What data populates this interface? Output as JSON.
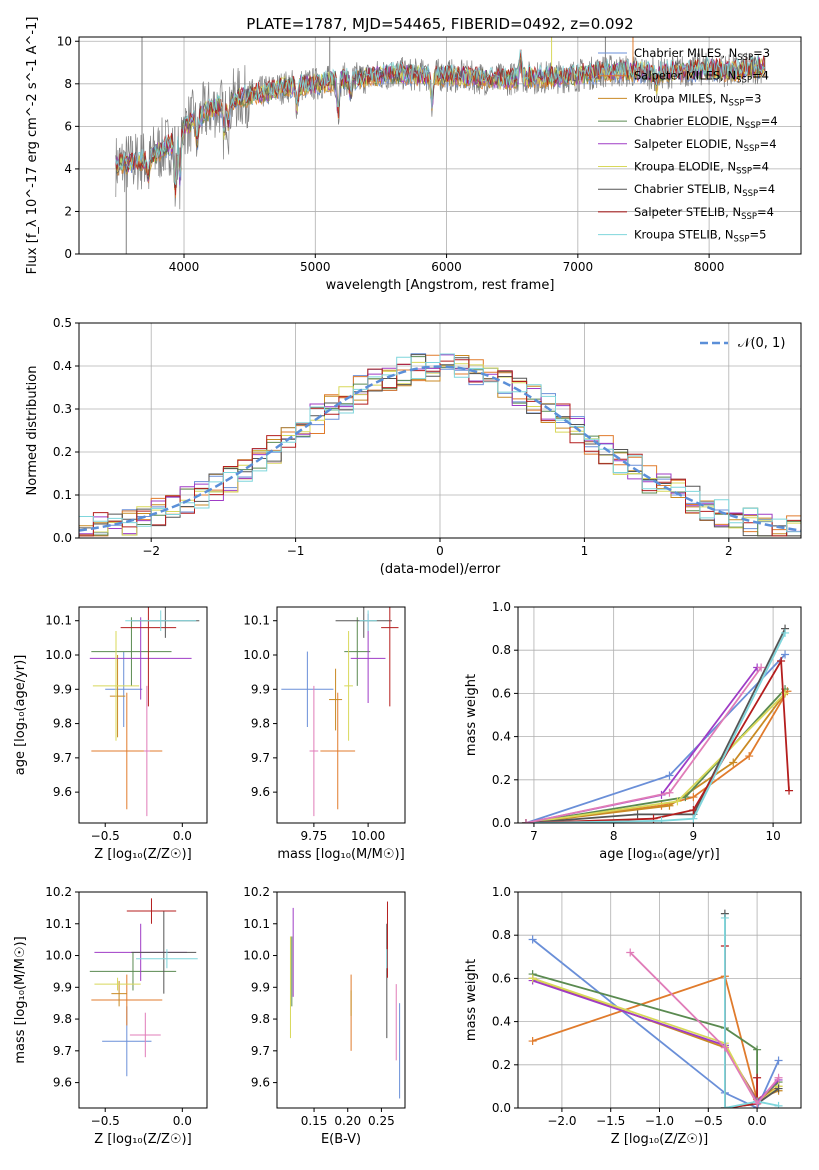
{
  "figure": {
    "title": "PLATE=1787, MJD=54465, FIBERID=0492, z=0.092"
  },
  "colors": {
    "Chabrier MILES": "#6a8fd8",
    "Salpeter MILES": "#e07b2c",
    "Kroupa MILES": "#c98a24",
    "Chabrier ELODIE": "#5a8a50",
    "Salpeter ELODIE": "#9f3cc6",
    "Kroupa ELODIE": "#d8d85a",
    "Chabrier STELIB": "#555555",
    "Salpeter STELIB": "#b41e1e",
    "Kroupa STELIB": "#7fd6dc",
    "extra_pink": "#e07cb8",
    "normal_curve": "#5b8fd8"
  },
  "chart_data": [
    {
      "id": "spectrum",
      "type": "line",
      "title": "PLATE=1787, MJD=54465, FIBERID=0492, z=0.092",
      "xlabel": "wavelength [Angstrom, rest frame]",
      "ylabel": "Flux [f_λ 10^-17 erg cm^-2 s^-1 A^-1]",
      "xlim": [
        3200,
        8700
      ],
      "ylim": [
        0,
        10.2
      ],
      "xticks": [
        "4000",
        "5000",
        "6000",
        "7000",
        "8000"
      ],
      "yticks": [
        "0",
        "2",
        "4",
        "6",
        "8",
        "10"
      ],
      "grid": true,
      "legend_position": "right",
      "legend": [
        {
          "label": "Chabrier MILES, N",
          "sub": "SSP",
          "tail": "=3",
          "key": "Chabrier MILES"
        },
        {
          "label": "Salpeter MILES, N",
          "sub": "SSP",
          "tail": "=4",
          "key": "Salpeter MILES"
        },
        {
          "label": "Kroupa MILES, N",
          "sub": "SSP",
          "tail": "=3",
          "key": "Kroupa MILES"
        },
        {
          "label": "Chabrier ELODIE, N",
          "sub": "SSP",
          "tail": "=4",
          "key": "Chabrier ELODIE"
        },
        {
          "label": "Salpeter ELODIE, N",
          "sub": "SSP",
          "tail": "=4",
          "key": "Salpeter ELODIE"
        },
        {
          "label": "Kroupa ELODIE, N",
          "sub": "SSP",
          "tail": "=4",
          "key": "Kroupa ELODIE"
        },
        {
          "label": "Chabrier STELIB, N",
          "sub": "SSP",
          "tail": "=4",
          "key": "Chabrier STELIB"
        },
        {
          "label": "Salpeter STELIB, N",
          "sub": "SSP",
          "tail": "=4",
          "key": "Salpeter STELIB"
        },
        {
          "label": "Kroupa STELIB, N",
          "sub": "SSP",
          "tail": "=5",
          "key": "Kroupa STELIB"
        }
      ],
      "continuum": {
        "x": [
          3500,
          3700,
          3900,
          4000,
          4200,
          4400,
          4600,
          4800,
          5000,
          5200,
          5400,
          5600,
          5800,
          6000,
          6200,
          6400,
          6600,
          6800,
          7000,
          7200,
          7400,
          7600,
          7800,
          8000,
          8200,
          8400
        ],
        "y": [
          4.2,
          4.4,
          5.2,
          6.0,
          6.8,
          7.3,
          7.6,
          7.9,
          8.0,
          8.2,
          8.3,
          8.5,
          8.4,
          8.4,
          8.3,
          8.2,
          8.3,
          8.3,
          8.4,
          8.6,
          8.6,
          8.5,
          8.6,
          8.7,
          8.6,
          8.8
        ]
      }
    },
    {
      "id": "residuals",
      "type": "histogram",
      "xlabel": "(data-model)/error",
      "ylabel": "Normed distribution",
      "xlim": [
        -2.5,
        2.5
      ],
      "ylim": [
        0,
        0.5
      ],
      "xticks": [
        "−2",
        "−1",
        "0",
        "1",
        "2"
      ],
      "yticks": [
        "0.0",
        "0.1",
        "0.2",
        "0.3",
        "0.4",
        "0.5"
      ],
      "grid": true,
      "legend": [
        {
          "label": "𝒩(0, 1)",
          "style": "dashed"
        }
      ],
      "curve": {
        "mean": 0,
        "sigma": 1
      }
    },
    {
      "id": "age_vs_Z",
      "type": "errorbar",
      "xlabel": "Z [log₁₀(Z/Z☉)]",
      "ylabel": "age  [log₁₀(age/yr)]",
      "xlim": [
        -0.67,
        0.16
      ],
      "ylim": [
        9.51,
        10.14
      ],
      "xticks": [
        "−0.5",
        "0.0"
      ],
      "yticks": [
        "9.6",
        "9.7",
        "9.8",
        "9.9",
        "10.0",
        "10.1"
      ],
      "points": [
        {
          "model": "Chabrier MILES",
          "x": -0.38,
          "xerr": 0.12,
          "y": 9.9,
          "yerr": 0.11
        },
        {
          "model": "Salpeter MILES",
          "x": -0.36,
          "xerr": 0.23,
          "y": 9.72,
          "yerr": 0.17
        },
        {
          "model": "Kroupa MILES",
          "x": -0.42,
          "xerr": 0.05,
          "y": 9.88,
          "yerr": 0.12
        },
        {
          "model": "Chabrier ELODIE",
          "x": -0.33,
          "xerr": 0.26,
          "y": 10.01,
          "yerr": 0.1
        },
        {
          "model": "Salpeter ELODIE",
          "x": -0.27,
          "xerr": 0.33,
          "y": 9.99,
          "yerr": 0.12
        },
        {
          "model": "Kroupa ELODIE",
          "x": -0.43,
          "xerr": 0.15,
          "y": 9.91,
          "yerr": 0.16
        },
        {
          "model": "Chabrier STELIB",
          "x": -0.11,
          "xerr": 0.22,
          "y": 10.1,
          "yerr": 0.05
        },
        {
          "model": "Salpeter STELIB",
          "x": -0.22,
          "xerr": 0.18,
          "y": 10.08,
          "yerr": 0.23
        },
        {
          "model": "Kroupa STELIB",
          "x": -0.14,
          "xerr": 0.23,
          "y": 10.1,
          "yerr": 0.03
        },
        {
          "model": "extra_pink",
          "x": -0.23,
          "xerr": 0.02,
          "y": 9.72,
          "yerr": 0.19
        }
      ]
    },
    {
      "id": "mass_vs_age",
      "type": "errorbar",
      "xlabel": "mass [log₁₀(M/M☉)]",
      "xlim": [
        9.58,
        10.17
      ],
      "ylim": [
        9.51,
        10.14
      ],
      "xticks": [
        "9.75",
        "10.00"
      ],
      "yticks": [
        "9.6",
        "9.7",
        "9.8",
        "9.9",
        "10.0",
        "10.1"
      ],
      "points": [
        {
          "model": "Chabrier MILES",
          "x": 9.72,
          "xerr": 0.12,
          "y": 9.9,
          "yerr": 0.11
        },
        {
          "model": "Salpeter MILES",
          "x": 9.86,
          "xerr": 0.08,
          "y": 9.72,
          "yerr": 0.17
        },
        {
          "model": "Kroupa MILES",
          "x": 9.85,
          "xerr": 0.03,
          "y": 9.87,
          "yerr": 0.09
        },
        {
          "model": "Chabrier ELODIE",
          "x": 9.95,
          "xerr": 0.06,
          "y": 10.01,
          "yerr": 0.1
        },
        {
          "model": "Salpeter ELODIE",
          "x": 10.0,
          "xerr": 0.08,
          "y": 9.99,
          "yerr": 0.13
        },
        {
          "model": "Kroupa ELODIE",
          "x": 9.91,
          "xerr": 0.02,
          "y": 9.91,
          "yerr": 0.16
        },
        {
          "model": "Chabrier STELIB",
          "x": 9.98,
          "xerr": 0.13,
          "y": 10.1,
          "yerr": 0.05
        },
        {
          "model": "Salpeter STELIB",
          "x": 10.1,
          "xerr": 0.04,
          "y": 10.08,
          "yerr": 0.23
        },
        {
          "model": "Kroupa STELIB",
          "x": 10.0,
          "xerr": 0.04,
          "y": 10.1,
          "yerr": 0.03
        },
        {
          "model": "extra_pink",
          "x": 9.75,
          "xerr": 0.02,
          "y": 9.72,
          "yerr": 0.19
        }
      ]
    },
    {
      "id": "weight_vs_age",
      "type": "line",
      "xlabel": "age  [log₁₀(age/yr)]",
      "ylabel": "mass weight",
      "xlim": [
        6.8,
        10.35
      ],
      "ylim": [
        0,
        1.0
      ],
      "xticks": [
        "7",
        "8",
        "9",
        "10"
      ],
      "yticks": [
        "0.0",
        "0.2",
        "0.4",
        "0.6",
        "0.8",
        "1.0"
      ],
      "grid": true,
      "series": [
        {
          "model": "Chabrier MILES",
          "x": [
            6.9,
            8.7,
            10.15
          ],
          "y": [
            0.0,
            0.22,
            0.78
          ]
        },
        {
          "model": "Salpeter MILES",
          "x": [
            6.9,
            8.6,
            9.0,
            9.7,
            10.18
          ],
          "y": [
            0.0,
            0.08,
            0.12,
            0.31,
            0.61
          ]
        },
        {
          "model": "Kroupa MILES",
          "x": [
            6.9,
            8.7,
            9.5,
            10.15
          ],
          "y": [
            0.0,
            0.08,
            0.28,
            0.6
          ]
        },
        {
          "model": "Chabrier ELODIE",
          "x": [
            6.9,
            8.9,
            10.15
          ],
          "y": [
            0.0,
            0.12,
            0.62
          ]
        },
        {
          "model": "Salpeter ELODIE",
          "x": [
            6.9,
            8.6,
            9.8
          ],
          "y": [
            0.0,
            0.13,
            0.72
          ]
        },
        {
          "model": "Kroupa ELODIE",
          "x": [
            6.9,
            8.8,
            10.15
          ],
          "y": [
            0.0,
            0.1,
            0.6
          ]
        },
        {
          "model": "Chabrier STELIB",
          "x": [
            6.9,
            8.3,
            9.0,
            10.15
          ],
          "y": [
            0.0,
            0.04,
            0.04,
            0.9
          ]
        },
        {
          "model": "Salpeter STELIB",
          "x": [
            6.9,
            8.5,
            9.0,
            10.1,
            10.2
          ],
          "y": [
            0.0,
            0.02,
            0.06,
            0.75,
            0.15
          ]
        },
        {
          "model": "Kroupa STELIB",
          "x": [
            6.9,
            8.6,
            9.0,
            10.15
          ],
          "y": [
            0.0,
            0.01,
            0.02,
            0.88
          ]
        },
        {
          "model": "extra_pink",
          "x": [
            6.9,
            8.7,
            9.85
          ],
          "y": [
            0.0,
            0.14,
            0.72
          ]
        }
      ]
    },
    {
      "id": "mass_vs_Z",
      "type": "errorbar",
      "xlabel": "Z [log₁₀(Z/Z☉)]",
      "ylabel": "mass [log₁₀(M/M☉)]",
      "xlim": [
        -0.67,
        0.16
      ],
      "ylim": [
        9.52,
        10.2
      ],
      "xticks": [
        "−0.5",
        "0.0"
      ],
      "yticks": [
        "9.6",
        "9.7",
        "9.8",
        "9.9",
        "10.0",
        "10.1",
        "10.2"
      ],
      "points": [
        {
          "model": "Chabrier MILES",
          "x": -0.36,
          "xerr": 0.16,
          "y": 9.73,
          "yerr": 0.11
        },
        {
          "model": "Salpeter MILES",
          "x": -0.36,
          "xerr": 0.23,
          "y": 9.86,
          "yerr": 0.08
        },
        {
          "model": "Kroupa MILES",
          "x": -0.41,
          "xerr": 0.05,
          "y": 9.88,
          "yerr": 0.04
        },
        {
          "model": "Chabrier ELODIE",
          "x": -0.32,
          "xerr": 0.28,
          "y": 9.95,
          "yerr": 0.06
        },
        {
          "model": "Salpeter ELODIE",
          "x": -0.27,
          "xerr": 0.3,
          "y": 10.01,
          "yerr": 0.09
        },
        {
          "model": "Kroupa ELODIE",
          "x": -0.42,
          "xerr": 0.15,
          "y": 9.91,
          "yerr": 0.02
        },
        {
          "model": "Chabrier STELIB",
          "x": -0.12,
          "xerr": 0.21,
          "y": 10.01,
          "yerr": 0.13
        },
        {
          "model": "Salpeter STELIB",
          "x": -0.2,
          "xerr": 0.16,
          "y": 10.14,
          "yerr": 0.04
        },
        {
          "model": "Kroupa STELIB",
          "x": -0.1,
          "xerr": 0.2,
          "y": 9.99,
          "yerr": 0.03
        },
        {
          "model": "extra_pink",
          "x": -0.24,
          "xerr": 0.1,
          "y": 9.75,
          "yerr": 0.07
        }
      ]
    },
    {
      "id": "mass_vs_EBV",
      "type": "errorbar",
      "xlabel": "E(B-V)",
      "xlim": [
        0.095,
        0.285
      ],
      "ylim": [
        9.52,
        10.2
      ],
      "xticks": [
        "0.15",
        "0.20",
        "0.25"
      ],
      "yticks": [
        "9.6",
        "9.7",
        "9.8",
        "9.9",
        "10.0",
        "10.1",
        "10.2"
      ],
      "points": [
        {
          "model": "Chabrier MILES",
          "x": 0.277,
          "y": 9.7,
          "yerr": 0.15
        },
        {
          "model": "Salpeter MILES",
          "x": 0.205,
          "y": 9.82,
          "yerr": 0.12
        },
        {
          "model": "Kroupa MILES",
          "x": 0.205,
          "y": 9.85,
          "yerr": 0.04
        },
        {
          "model": "Chabrier ELODIE",
          "x": 0.117,
          "y": 9.95,
          "yerr": 0.11
        },
        {
          "model": "Salpeter ELODIE",
          "x": 0.119,
          "y": 10.01,
          "yerr": 0.14
        },
        {
          "model": "Kroupa ELODIE",
          "x": 0.115,
          "y": 9.9,
          "yerr": 0.16
        },
        {
          "model": "Chabrier STELIB",
          "x": 0.258,
          "y": 9.92,
          "yerr": 0.18
        },
        {
          "model": "Salpeter STELIB",
          "x": 0.259,
          "y": 10.05,
          "yerr": 0.12
        },
        {
          "model": "Kroupa STELIB",
          "x": 0.258,
          "y": 9.99,
          "yerr": 0.03
        },
        {
          "model": "extra_pink",
          "x": 0.272,
          "y": 9.79,
          "yerr": 0.12
        }
      ]
    },
    {
      "id": "weight_vs_Z",
      "type": "line",
      "xlabel": "Z [log₁₀(Z/Z☉)]",
      "ylabel": "mass weight",
      "xlim": [
        -2.45,
        0.45
      ],
      "ylim": [
        0,
        1.0
      ],
      "xticks": [
        "−2.0",
        "−1.5",
        "−1.0",
        "−0.5",
        "0.0"
      ],
      "yticks": [
        "0.0",
        "0.2",
        "0.4",
        "0.6",
        "0.8",
        "1.0"
      ],
      "grid": true,
      "series": [
        {
          "model": "Chabrier MILES",
          "x": [
            -2.3,
            -0.33,
            0.0,
            0.22
          ],
          "y": [
            0.78,
            0.07,
            0.0,
            0.22
          ]
        },
        {
          "model": "Salpeter MILES",
          "x": [
            -2.3,
            -0.33,
            0.0,
            0.22
          ],
          "y": [
            0.31,
            0.61,
            0.04,
            0.1
          ]
        },
        {
          "model": "Kroupa MILES",
          "x": [
            -2.3,
            -0.33,
            0.0,
            0.22
          ],
          "y": [
            0.6,
            0.28,
            0.04,
            0.08
          ]
        },
        {
          "model": "Chabrier ELODIE",
          "x": [
            -2.3,
            -0.33,
            0.0,
            0.0,
            0.22
          ],
          "y": [
            0.62,
            0.37,
            0.27,
            0.03,
            0.12
          ]
        },
        {
          "model": "Salpeter ELODIE",
          "x": [
            -2.3,
            -0.33,
            0.0,
            0.22
          ],
          "y": [
            0.59,
            0.29,
            0.03,
            0.13
          ]
        },
        {
          "model": "Kroupa ELODIE",
          "x": [
            -2.3,
            -0.33,
            0.0,
            0.22
          ],
          "y": [
            0.6,
            0.3,
            0.02,
            0.1
          ]
        },
        {
          "model": "Chabrier STELIB",
          "x": [
            -0.33,
            -0.33,
            0.0,
            0.22
          ],
          "y": [
            0.9,
            0.0,
            0.02,
            0.09
          ]
        },
        {
          "model": "Salpeter STELIB",
          "x": [
            -0.33,
            -0.33,
            0.0,
            0.0
          ],
          "y": [
            0.75,
            0.0,
            0.02,
            0.14
          ]
        },
        {
          "model": "Kroupa STELIB",
          "x": [
            -0.33,
            -0.33,
            0.0,
            0.22
          ],
          "y": [
            0.88,
            0.0,
            0.03,
            0.01
          ]
        },
        {
          "model": "extra_pink",
          "x": [
            -1.3,
            -0.33,
            0.0,
            0.22
          ],
          "y": [
            0.72,
            0.28,
            0.02,
            0.14
          ]
        }
      ]
    }
  ]
}
